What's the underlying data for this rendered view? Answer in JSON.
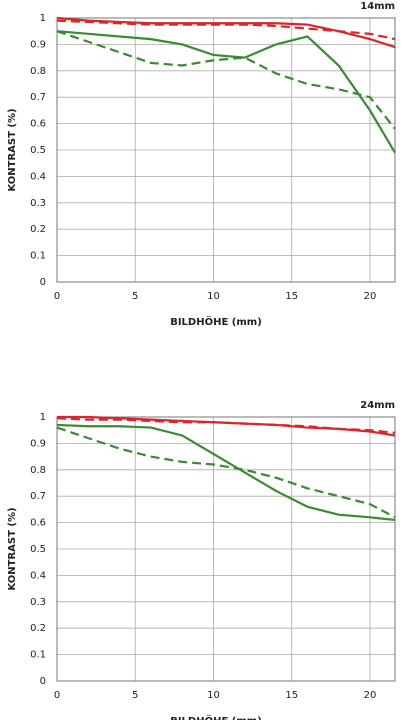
{
  "chart_data": [
    {
      "type": "line",
      "title": "14mm",
      "x_label": "BILDHÖHE (mm)",
      "y_label": "KONTRAST (%)",
      "x": [
        0,
        2,
        4,
        6,
        8,
        10,
        12,
        14,
        16,
        18,
        20,
        21.6
      ],
      "xlim": [
        0,
        21.6
      ],
      "xticks": [
        0,
        5,
        10,
        15,
        20
      ],
      "ylim": [
        0,
        1
      ],
      "yticks": [
        0,
        0.1,
        0.2,
        0.3,
        0.4,
        0.5,
        0.6,
        0.7,
        0.8,
        0.9,
        1
      ],
      "grid": true,
      "series": [
        {
          "color": "#d8262b",
          "dash": false,
          "values": [
            1,
            0.99,
            0.985,
            0.98,
            0.98,
            0.98,
            0.98,
            0.98,
            0.975,
            0.95,
            0.92,
            0.89
          ]
        },
        {
          "color": "#d8262b",
          "dash": true,
          "values": [
            0.99,
            0.985,
            0.98,
            0.975,
            0.975,
            0.975,
            0.975,
            0.97,
            0.96,
            0.95,
            0.94,
            0.92
          ]
        },
        {
          "color": "#3a8a33",
          "dash": false,
          "values": [
            0.95,
            0.94,
            0.93,
            0.92,
            0.9,
            0.86,
            0.85,
            0.9,
            0.93,
            0.82,
            0.65,
            0.49
          ]
        },
        {
          "color": "#3a8a33",
          "dash": true,
          "values": [
            0.95,
            0.91,
            0.87,
            0.83,
            0.82,
            0.84,
            0.85,
            0.79,
            0.75,
            0.73,
            0.7,
            0.58
          ]
        }
      ]
    },
    {
      "type": "line",
      "title": "24mm",
      "x_label": "BILDHÖHE (mm)",
      "y_label": "KONTRAST (%)",
      "x": [
        0,
        2,
        4,
        6,
        8,
        10,
        12,
        14,
        16,
        18,
        20,
        21.6
      ],
      "xlim": [
        0,
        21.6
      ],
      "xticks": [
        0,
        5,
        10,
        15,
        20
      ],
      "ylim": [
        0,
        1
      ],
      "yticks": [
        0,
        0.1,
        0.2,
        0.3,
        0.4,
        0.5,
        0.6,
        0.7,
        0.8,
        0.9,
        1
      ],
      "grid": true,
      "series": [
        {
          "color": "#d8262b",
          "dash": false,
          "values": [
            1,
            1,
            0.995,
            0.99,
            0.985,
            0.98,
            0.975,
            0.97,
            0.96,
            0.955,
            0.945,
            0.93
          ]
        },
        {
          "color": "#d8262b",
          "dash": true,
          "values": [
            0.995,
            0.99,
            0.99,
            0.985,
            0.98,
            0.98,
            0.975,
            0.97,
            0.965,
            0.955,
            0.95,
            0.94
          ]
        },
        {
          "color": "#3a8a33",
          "dash": false,
          "values": [
            0.97,
            0.965,
            0.965,
            0.96,
            0.93,
            0.86,
            0.79,
            0.72,
            0.66,
            0.63,
            0.62,
            0.61
          ]
        },
        {
          "color": "#3a8a33",
          "dash": true,
          "values": [
            0.96,
            0.92,
            0.88,
            0.85,
            0.83,
            0.82,
            0.8,
            0.77,
            0.73,
            0.7,
            0.67,
            0.62
          ]
        }
      ]
    }
  ]
}
